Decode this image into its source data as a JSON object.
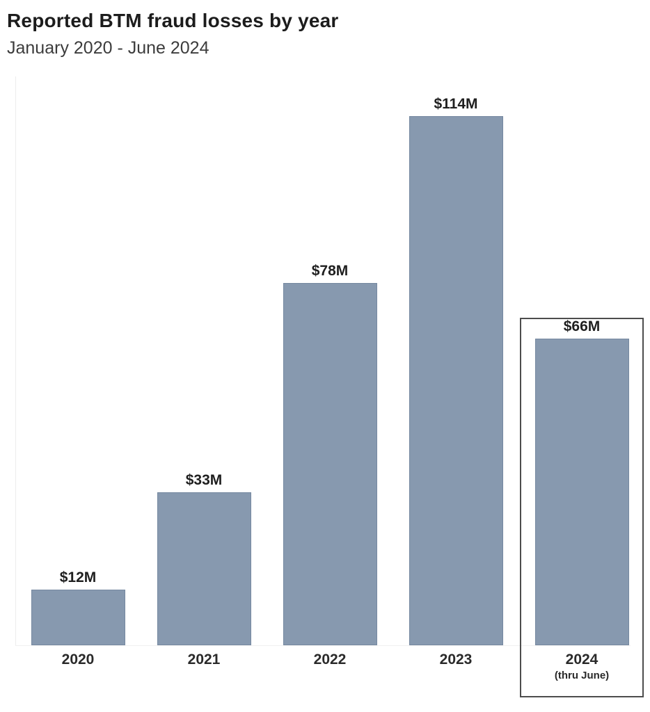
{
  "chart": {
    "title": "Reported BTM fraud losses by year",
    "subtitle": "January 2020 - June 2024"
  },
  "chart_data": {
    "type": "bar",
    "title": "Reported BTM fraud losses by year",
    "subtitle": "January 2020 - June 2024",
    "unit": "USD millions",
    "categories": [
      "2020",
      "2021",
      "2022",
      "2023",
      "2024"
    ],
    "values": [
      12,
      33,
      78,
      114,
      66
    ],
    "bar_labels": [
      "$12M",
      "$33M",
      "$78M",
      "$114M",
      "$66M"
    ],
    "category_sublabels": [
      "",
      "",
      "",
      "",
      "(thru June)"
    ],
    "highlighted_category": "2024",
    "xlabel": "",
    "ylabel": "",
    "ylim": [
      0,
      123
    ],
    "grid": false,
    "legend": false,
    "bar_color": "#8799AF",
    "highlight_box_border_color": "#4d4d4d",
    "axis_line_color": "#ececec",
    "title_color": "#1c1c1c",
    "subtitle_color": "#3c3c3c",
    "label_color": "#1f1f1f"
  }
}
